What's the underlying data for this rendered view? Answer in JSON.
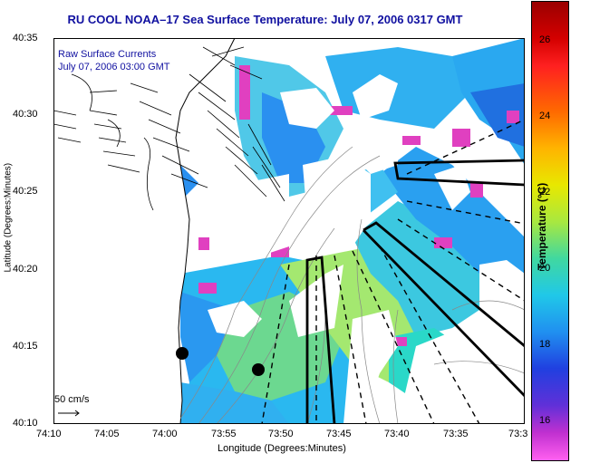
{
  "title": "RU COOL  NOAA–17  Sea Surface Temperature:  July 07, 2006 0317 GMT",
  "legend": {
    "line1": "Raw Surface Currents",
    "line2": "July 07, 2006 03:00 GMT"
  },
  "axes": {
    "xlabel": "Longitude (Degrees:Minutes)",
    "ylabel": "Latitude (Degrees:Minutes)",
    "xticks": [
      "74:10",
      "74:05",
      "74:00",
      "73:55",
      "73:50",
      "73:45",
      "73:40",
      "73:35",
      "73:3"
    ],
    "yticks": [
      "40:35",
      "40:30",
      "40:25",
      "40:20",
      "40:15",
      "40:10"
    ]
  },
  "colorbar": {
    "title": "Temperature (°C)",
    "ticks": [
      "26",
      "24",
      "22",
      "20",
      "18",
      "16"
    ],
    "range": [
      15,
      27
    ]
  },
  "scale_bar": {
    "label": "50 cm/s"
  },
  "colors": {
    "title": "#1010a0",
    "land": "#ffffff",
    "contour": "#888888"
  }
}
